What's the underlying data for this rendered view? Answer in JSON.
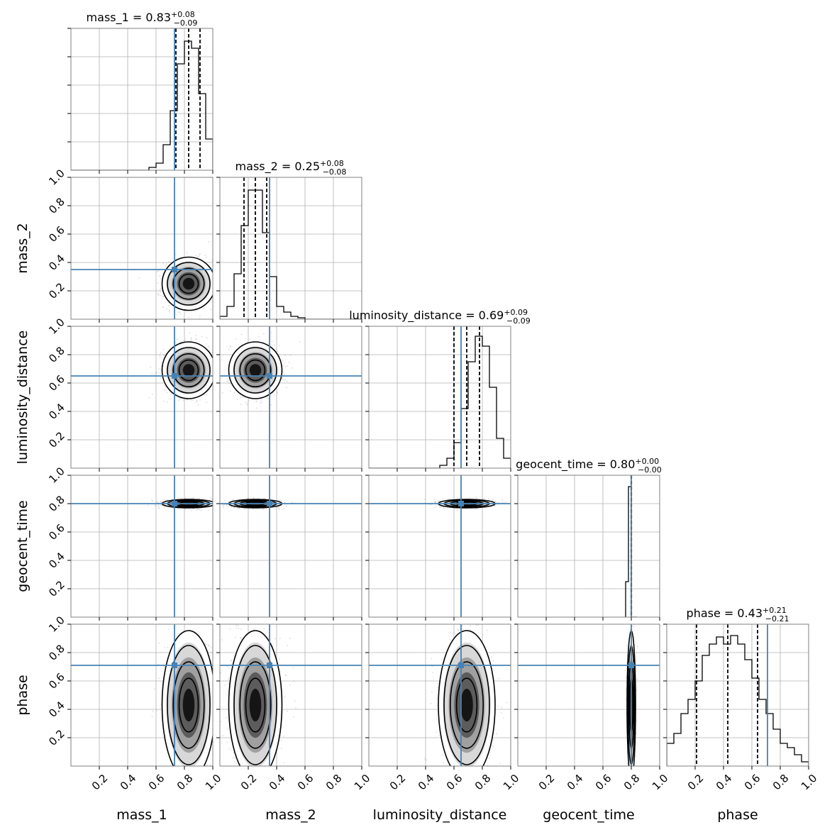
{
  "chart_data": {
    "type": "corner",
    "parameters": [
      "mass_1",
      "mass_2",
      "luminosity_distance",
      "geocent_time",
      "phase"
    ],
    "axis_labels": [
      "mass_1",
      "mass_2",
      "luminosity_distance",
      "geocent_time",
      "phase"
    ],
    "titles": [
      {
        "text": "mass_1 = 0.83",
        "plus": "+0.08",
        "minus": "−0.09"
      },
      {
        "text": "mass_2 = 0.25",
        "plus": "+0.08",
        "minus": "−0.08"
      },
      {
        "text": "luminosity_distance = 0.69",
        "plus": "+0.09",
        "minus": "−0.09"
      },
      {
        "text": "geocent_time = 0.80",
        "plus": "+0.00",
        "minus": "−0.00"
      },
      {
        "text": "phase = 0.43",
        "plus": "+0.21",
        "minus": "−0.21"
      }
    ],
    "truths": [
      0.73,
      0.35,
      0.65,
      0.8,
      0.71
    ],
    "quantiles": [
      [
        0.74,
        0.83,
        0.91
      ],
      [
        0.17,
        0.25,
        0.33
      ],
      [
        0.6,
        0.69,
        0.78
      ],
      [
        0.799,
        0.8,
        0.801
      ],
      [
        0.21,
        0.43,
        0.64
      ]
    ],
    "ticks": [
      0.2,
      0.4,
      0.6,
      0.8,
      1.0
    ],
    "tick_labels": [
      "0.2",
      "0.4",
      "0.6",
      "0.8",
      "1.0"
    ],
    "xlim": [
      0,
      1
    ],
    "ylim": [
      0,
      1
    ],
    "grid": true,
    "truth_color": "#4682b4",
    "histogram_color": "#000000",
    "point_color": "#9a9a9a",
    "histograms": [
      {
        "bin_width": 0.05,
        "start": 0.0,
        "counts": [
          0,
          0,
          0,
          0,
          0,
          0,
          0,
          0,
          0,
          0,
          0,
          0.02,
          0.05,
          0.18,
          0.42,
          0.75,
          0.91,
          0.86,
          0.54,
          0.22
        ]
      },
      {
        "bin_width": 0.05,
        "start": 0.0,
        "counts": [
          0.02,
          0.09,
          0.32,
          0.66,
          0.91,
          0.91,
          0.61,
          0.3,
          0.09,
          0.05,
          0.02,
          0.01,
          0,
          0,
          0,
          0,
          0,
          0,
          0,
          0
        ]
      },
      {
        "bin_width": 0.05,
        "start": 0.0,
        "counts": [
          0,
          0,
          0,
          0,
          0,
          0,
          0,
          0,
          0,
          0,
          0.02,
          0.07,
          0.18,
          0.42,
          0.75,
          0.93,
          0.86,
          0.57,
          0.21,
          0.07
        ]
      },
      {
        "bin_width": 0.02,
        "start": 0.76,
        "counts": [
          0.25,
          0.92,
          0,
          0
        ]
      },
      {
        "bin_width": 0.05,
        "start": 0.0,
        "counts": [
          0.16,
          0.23,
          0.37,
          0.47,
          0.6,
          0.78,
          0.86,
          0.91,
          0.86,
          0.92,
          0.86,
          0.75,
          0.62,
          0.47,
          0.37,
          0.26,
          0.16,
          0.13,
          0.08,
          0.03
        ]
      }
    ],
    "sigma": [
      0.075,
      0.075,
      0.08,
      0.012,
      0.21
    ]
  }
}
